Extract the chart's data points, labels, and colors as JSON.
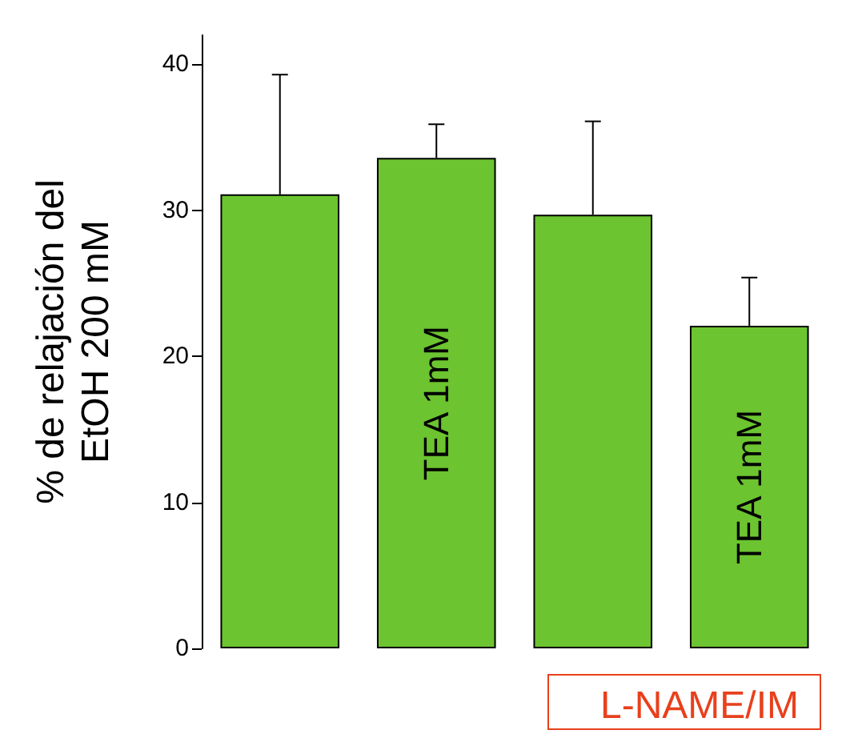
{
  "chart_data": {
    "type": "bar",
    "ylabel": "% de relajación del\nEtOH 200 mM",
    "categories": [
      null,
      "TEA 1mM",
      null,
      "TEA 1mM"
    ],
    "values": [
      31.1,
      33.6,
      29.7,
      22.1
    ],
    "errors": [
      [
        31.1,
        39.3
      ],
      [
        33.6,
        35.9
      ],
      [
        29.7,
        36.1
      ],
      [
        22.1,
        25.4
      ]
    ],
    "colors": [
      "#6cc430",
      "#6cc430",
      "#6cc430",
      "#6cc430"
    ],
    "ylim": [
      0,
      42
    ],
    "yticks": [
      0,
      10,
      20,
      30,
      40
    ],
    "grid": false,
    "annotations": [
      "L-NAME/IM"
    ]
  }
}
